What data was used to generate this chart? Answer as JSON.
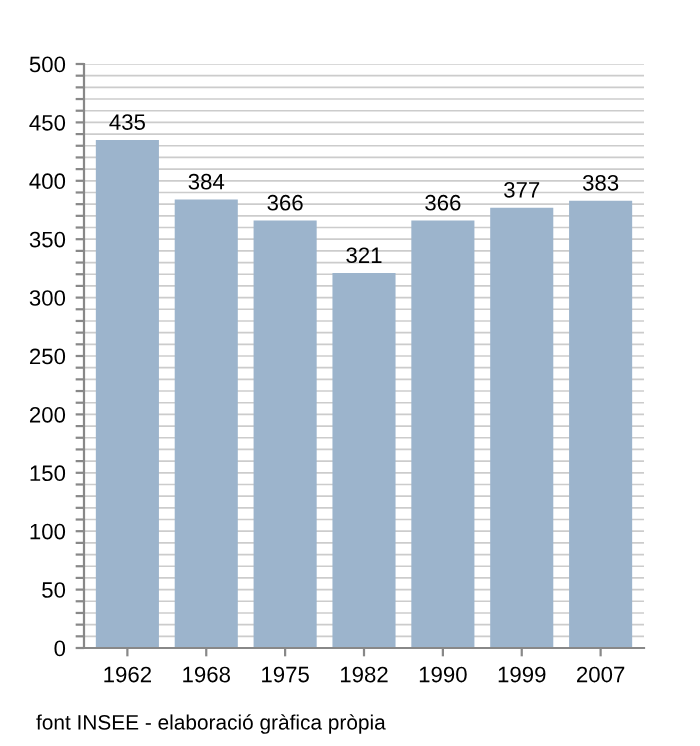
{
  "chart_data": {
    "type": "bar",
    "categories": [
      "1962",
      "1968",
      "1975",
      "1982",
      "1990",
      "1999",
      "2007"
    ],
    "values": [
      435,
      384,
      366,
      321,
      366,
      377,
      383
    ],
    "color": "#9cb4cc",
    "data_labels": true,
    "ylim": [
      0,
      500
    ],
    "yticks": [
      0,
      {
        "value": 10,
        "label": null
      },
      {
        "value": 20,
        "label": null
      },
      {
        "value": 30,
        "label": null
      },
      {
        "value": 40,
        "label": null
      },
      50,
      {
        "value": 60,
        "label": null
      },
      {
        "value": 70,
        "label": null
      },
      {
        "value": 80,
        "label": null
      },
      {
        "value": 90,
        "label": null
      },
      100,
      {
        "value": 110,
        "label": null
      },
      {
        "value": 120,
        "label": null
      },
      {
        "value": 130,
        "label": null
      },
      {
        "value": 140,
        "label": null
      },
      150,
      {
        "value": 160,
        "label": null
      },
      {
        "value": 170,
        "label": null
      },
      {
        "value": 180,
        "label": null
      },
      {
        "value": 190,
        "label": null
      },
      200,
      {
        "value": 210,
        "label": null
      },
      {
        "value": 220,
        "label": null
      },
      {
        "value": 230,
        "label": null
      },
      {
        "value": 240,
        "label": null
      },
      250,
      {
        "value": 260,
        "label": null
      },
      {
        "value": 270,
        "label": null
      },
      {
        "value": 280,
        "label": null
      },
      {
        "value": 290,
        "label": null
      },
      300,
      {
        "value": 310,
        "label": null
      },
      {
        "value": 320,
        "label": null
      },
      {
        "value": 330,
        "label": null
      },
      {
        "value": 340,
        "label": null
      },
      350,
      {
        "value": 360,
        "label": null
      },
      {
        "value": 370,
        "label": null
      },
      {
        "value": 380,
        "label": null
      },
      {
        "value": 390,
        "label": null
      },
      400,
      {
        "value": 410,
        "label": null
      },
      {
        "value": 420,
        "label": null
      },
      {
        "value": 430,
        "label": null
      },
      {
        "value": 440,
        "label": null
      },
      450,
      {
        "value": 460,
        "label": null
      },
      {
        "value": 470,
        "label": null
      },
      {
        "value": 480,
        "label": null
      },
      {
        "value": 490,
        "label": null
      },
      500
    ],
    "grid": "y",
    "annotations": [
      "font INSEE - elaboració gràfica pròpia"
    ]
  }
}
